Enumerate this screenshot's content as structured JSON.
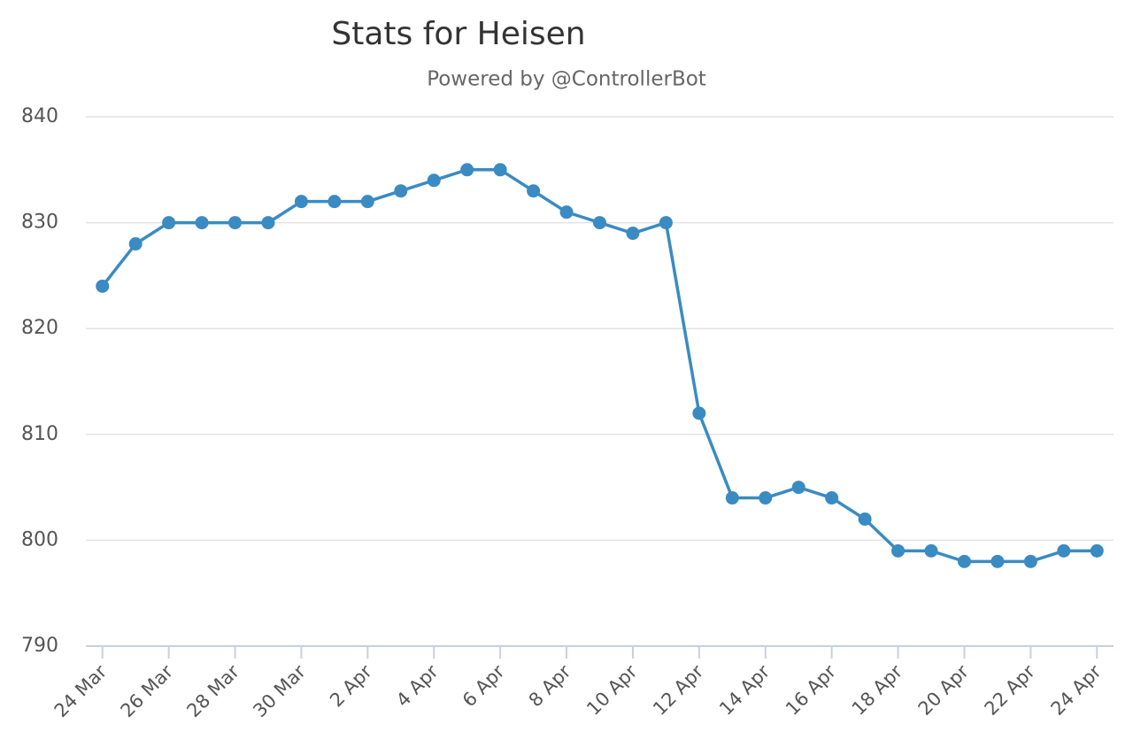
{
  "chart_data": {
    "type": "line",
    "title": "Stats for Heisen",
    "subtitle": "Powered by @ControllerBot",
    "categories": [
      "24 Mar",
      null,
      "26 Mar",
      null,
      "28 Mar",
      null,
      "30 Mar",
      null,
      "2 Apr",
      null,
      "4 Apr",
      null,
      "6 Apr",
      null,
      "8 Apr",
      null,
      "10 Apr",
      null,
      "12 Apr",
      null,
      "14 Apr",
      null,
      "16 Apr",
      null,
      "18 Apr",
      null,
      "20 Apr",
      null,
      "22 Apr",
      null,
      "24 Apr"
    ],
    "values": [
      824,
      828,
      830,
      830,
      830,
      830,
      832,
      832,
      832,
      833,
      834,
      835,
      835,
      833,
      831,
      830,
      829,
      830,
      812,
      804,
      804,
      805,
      804,
      802,
      799,
      799,
      798,
      798,
      798,
      799,
      799
    ],
    "color": "#3a8bc2",
    "ylim": [
      790,
      840
    ],
    "yticks": [
      790,
      800,
      810,
      820,
      830,
      840
    ],
    "grid": true
  }
}
